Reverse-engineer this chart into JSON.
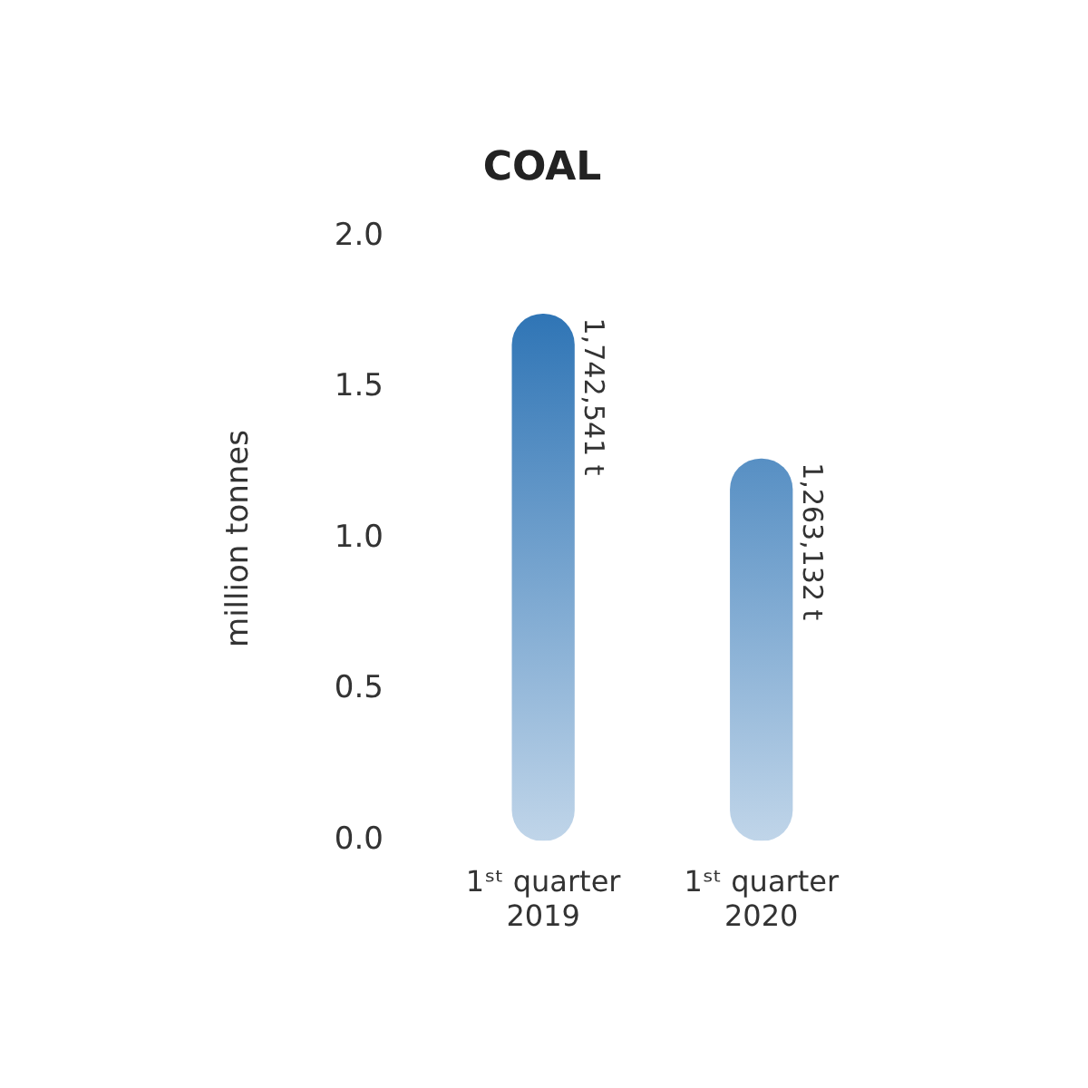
{
  "chart_data": {
    "type": "bar",
    "title": "COAL",
    "ylabel": "million tonnes",
    "categories": [
      "1ˢᵗ quarter\n2019",
      "1ˢᵗ quarter\n2020"
    ],
    "values": [
      1.742541,
      1.263132
    ],
    "color": "#2e74b5",
    "annotations": [
      {
        "text": "1,742,541 t",
        "x": "1ˢᵗ quarter\n2019",
        "y": 1.742541
      },
      {
        "text": "1,263,132 t",
        "x": "1ˢᵗ quarter\n2020",
        "y": 1.263132
      }
    ],
    "ylim": [
      0,
      2
    ],
    "yticks": [
      {
        "value": 0,
        "label": "0.0"
      },
      {
        "value": 0.5,
        "label": "0.5"
      },
      {
        "value": 1,
        "label": "1.0"
      },
      {
        "value": 1.5,
        "label": "1.5"
      },
      {
        "value": 2,
        "label": "2.0"
      }
    ],
    "grid": false,
    "legend": false
  }
}
